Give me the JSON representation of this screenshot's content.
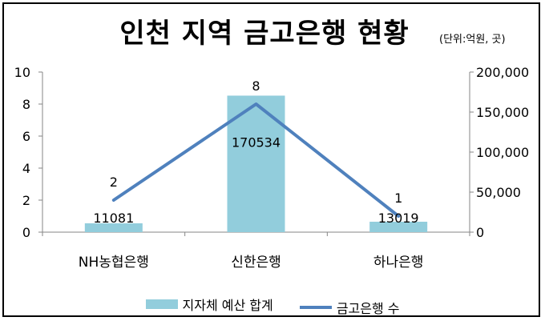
{
  "chart_data": {
    "type": "bar+line",
    "title": "인천 지역 금고은행 현황",
    "subtitle": "(단위:억원, 곳)",
    "categories": [
      "NH농협은행",
      "신한은행",
      "하나은행"
    ],
    "series": [
      {
        "name": "지자체 예산 합계",
        "type": "bar",
        "axis": "right",
        "values": [
          11081,
          170534,
          13019
        ],
        "color": "#92cddc"
      },
      {
        "name": "금고은행 수",
        "type": "line",
        "axis": "left",
        "values": [
          2,
          8,
          1
        ],
        "color": "#4f81bd"
      }
    ],
    "y_left": {
      "min": 0,
      "max": 10,
      "ticks": [
        "0",
        "2",
        "4",
        "6",
        "8",
        "10"
      ]
    },
    "y_right": {
      "min": 0,
      "max": 200000,
      "ticks": [
        "0",
        "50,000",
        "100,000",
        "150,000",
        "200,000"
      ]
    },
    "grid": false,
    "legend": "bottom"
  }
}
